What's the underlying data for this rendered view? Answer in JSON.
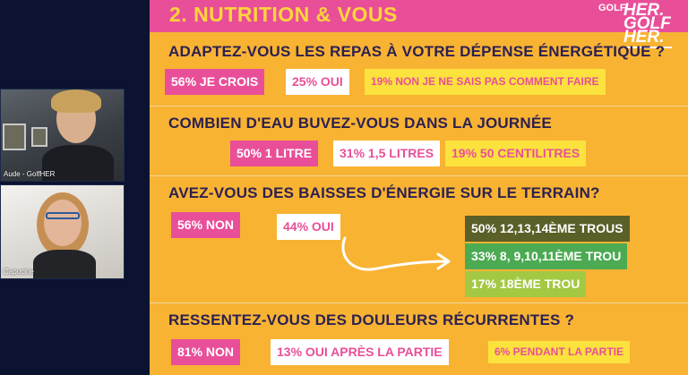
{
  "participants": [
    {
      "name": "Aude - GolfHER"
    },
    {
      "name": "Capucine"
    }
  ],
  "slide": {
    "title": "2. NUTRITION & VOUS",
    "logo": {
      "small": "GOLF",
      "big_line1": "HER.",
      "big_line2": "GOLF",
      "big_line3": "HER."
    },
    "questions": [
      {
        "text": "ADAPTEZ-VOUS LES REPAS À VOTRE DÉPENSE ÉNERGÉTIQUE ?",
        "answers": [
          "56% JE CROIS",
          "25% OUI",
          "19% NON JE NE SAIS PAS COMMENT FAIRE"
        ]
      },
      {
        "text": "COMBIEN D'EAU BUVEZ-VOUS DANS LA JOURNÉE",
        "answers": [
          "50% 1 LITRE",
          "31% 1,5 LITRES",
          "19% 50 CENTILITRES"
        ]
      },
      {
        "text": "AVEZ-VOUS DES BAISSES D'ÉNERGIE SUR LE TERRAIN?",
        "answers": [
          "56% NON",
          "44% OUI"
        ],
        "sub_answers": [
          "50% 12,13,14ÈME TROUS",
          "33% 8, 9,10,11ÈME TROU",
          "17% 18ÈME TROU"
        ]
      },
      {
        "text": "RESSENTEZ-VOUS DES DOULEURS RÉCURRENTES ?",
        "answers": [
          "81% NON",
          "13% OUI APRÈS LA PARTIE",
          "6% PENDANT LA PARTIE"
        ]
      }
    ]
  },
  "colors": {
    "background": "#0b1330",
    "slide_bg": "#f8b333",
    "title_bar": "#e94f99",
    "title_text": "#ffd53a",
    "question_text": "#2d2150",
    "chip_pink": "#e94f99",
    "chip_yellow": "#fbe23d",
    "chip_olive": "#5b5f28",
    "chip_green": "#4caa52",
    "chip_lime": "#a3c943"
  }
}
